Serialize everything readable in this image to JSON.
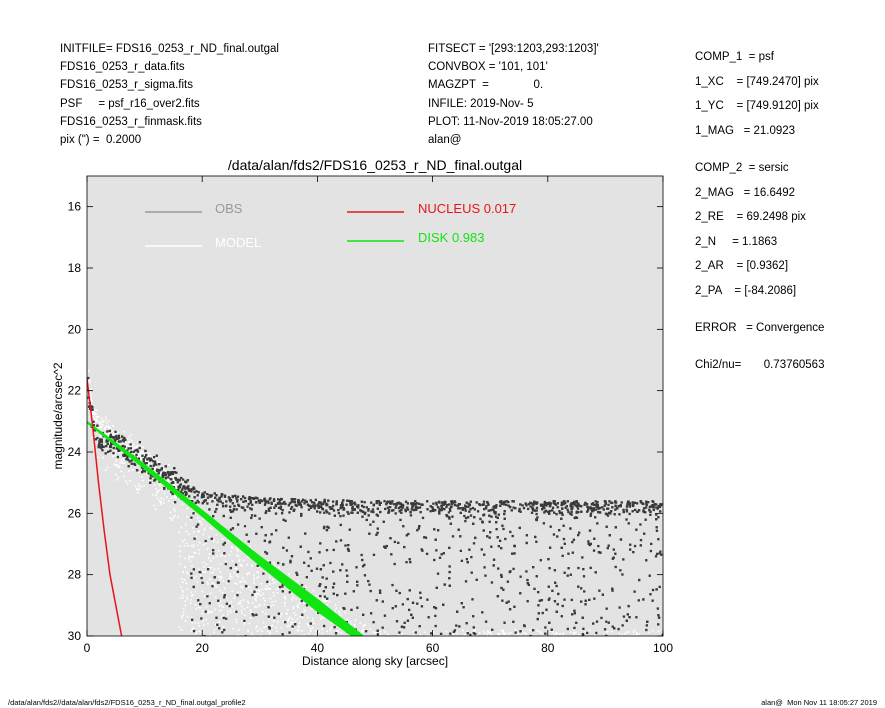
{
  "header_left": [
    "INITFILE= FDS16_0253_r_ND_final.outgal",
    "FDS16_0253_r_data.fits",
    "FDS16_0253_r_sigma.fits",
    "PSF     = psf_r16_over2.fits",
    "FDS16_0253_r_finmask.fits",
    "pix (\") =  0.2000"
  ],
  "header_mid": [
    "FITSECT = '[293:1203,293:1203]'",
    "CONVBOX = '101, 101'",
    "MAGZPT  =              0.",
    "INFILE: 2019-Nov- 5",
    "PLOT: 11-Nov-2019 18:05:27.00",
    "alan@"
  ],
  "header_right": [
    "COMP_1  = psf",
    "1_XC    = [749.2470] pix",
    "1_YC    = [749.9120] pix",
    "1_MAG   = 21.0923",
    "",
    "COMP_2  = sersic",
    "2_MAG   = 16.6492",
    "2_RE    = 69.2498 pix",
    "2_N     = 1.1863",
    "2_AR    = [0.9362]",
    "2_PA    = [-84.2086]",
    "",
    "ERROR   = Convergence",
    "",
    "Chi2/nu=       0.73760563"
  ],
  "footer_left": "/data/alan/fds2//data/alan/fds2/FDS16_0253_r_ND_final.outgal_profile2",
  "footer_right": "alan@  Mon Nov 11 18:05:27 2019",
  "colors": {
    "panel_bg": "#e3e3e3",
    "obs": "#3a3a3a",
    "model": "#ffffff",
    "nucleus": "#e8141b",
    "disk": "#11e511",
    "legend_obs": "#999999"
  },
  "chart_data": {
    "type": "scatter",
    "title": "/data/alan/fds2/FDS16_0253_r_ND_final.outgal",
    "xlabel": "Distance along sky [arcsec]",
    "ylabel": "magnitude/arcsec^2",
    "xlim": [
      0,
      100
    ],
    "ylim": [
      30,
      15
    ],
    "y_reversed": true,
    "xticks": [
      0,
      20,
      40,
      60,
      80,
      100
    ],
    "yticks": [
      16,
      18,
      20,
      22,
      24,
      26,
      28,
      30
    ],
    "grid": false,
    "legend": [
      {
        "name": "OBS",
        "style": "line"
      },
      {
        "name": "MODEL",
        "style": "line"
      },
      {
        "name": "NUCLEUS",
        "value": "0.017",
        "style": "line"
      },
      {
        "name": "DISK",
        "value": "0.983",
        "style": "line"
      }
    ],
    "series": [
      {
        "name": "OBS",
        "kind": "scatter",
        "description": "observed pixel surface brightness; follows the disk profile to ~26 mag then saturates near the noise floor",
        "knots": [
          [
            0.2,
            21.6
          ],
          [
            0.5,
            22.3
          ],
          [
            1,
            22.9
          ],
          [
            2,
            23.3
          ],
          [
            5,
            23.5
          ],
          [
            10,
            24.1
          ],
          [
            15,
            24.8
          ],
          [
            20,
            25.3
          ],
          [
            30,
            25.5
          ],
          [
            50,
            25.6
          ],
          [
            70,
            25.6
          ],
          [
            100,
            25.6
          ]
        ],
        "noise_floor_mag": 25.5
      },
      {
        "name": "MODEL",
        "kind": "scatter",
        "description": "total model (nucleus + disk)",
        "knots": [
          [
            0.2,
            21.6
          ],
          [
            1,
            22.7
          ],
          [
            2,
            23.1
          ],
          [
            5,
            23.5
          ],
          [
            10,
            24.2
          ],
          [
            20,
            25.9
          ],
          [
            30,
            27.3
          ],
          [
            40,
            28.6
          ],
          [
            50,
            29.8
          ]
        ]
      },
      {
        "name": "NUCLEUS",
        "kind": "line",
        "fraction": 0.017,
        "points": [
          [
            0,
            21.6
          ],
          [
            0.5,
            22.4
          ],
          [
            1,
            23.2
          ],
          [
            2,
            25.0
          ],
          [
            3,
            26.6
          ],
          [
            4,
            28.0
          ],
          [
            5,
            29.0
          ],
          [
            6,
            30.0
          ]
        ]
      },
      {
        "name": "DISK",
        "kind": "band",
        "fraction": 0.983,
        "points": [
          [
            0,
            23.0
          ],
          [
            10,
            24.4
          ],
          [
            20,
            25.9
          ],
          [
            30,
            27.4
          ],
          [
            40,
            28.8
          ],
          [
            48,
            30.0
          ],
          [
            55.6,
            30.0
          ]
        ],
        "lower_points": [
          [
            0,
            23.05
          ],
          [
            10,
            24.55
          ],
          [
            20,
            26.1
          ],
          [
            30,
            27.7
          ],
          [
            40,
            29.2
          ],
          [
            46,
            30.0
          ]
        ]
      }
    ]
  }
}
